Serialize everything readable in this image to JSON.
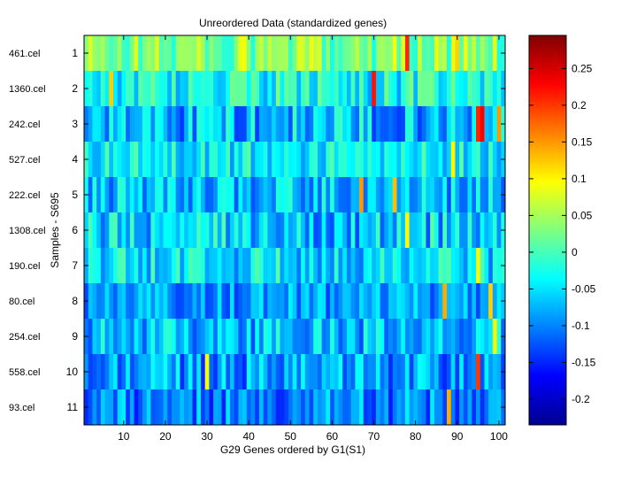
{
  "chart_data": {
    "type": "heatmap",
    "title": "Unreordered Data (standardized genes)",
    "xlabel": "G29 Genes ordered by G1(S1)",
    "ylabel": "Samples - S695",
    "x_ticks": [
      10,
      20,
      30,
      40,
      50,
      60,
      70,
      80,
      90,
      100
    ],
    "xlim": [
      0.5,
      101.5
    ],
    "n_columns": 101,
    "row_numbers": [
      1,
      2,
      3,
      4,
      5,
      6,
      7,
      8,
      9,
      10,
      11
    ],
    "row_labels": [
      "461.cel",
      "1360.cel",
      "242.cel",
      "527.cel",
      "222.cel",
      "1308.cel",
      "190.cel",
      "80.cel",
      "254.cel",
      "558.cel",
      "93.cel"
    ],
    "colorbar": {
      "colormap": "jet",
      "clim": [
        -0.235,
        0.295
      ],
      "ticks": [
        0.25,
        0.2,
        0.15,
        0.1,
        0.05,
        0,
        -0.05,
        -0.1,
        -0.15,
        -0.2
      ],
      "tick_labels": [
        "0.25",
        "0.2",
        "0.15",
        "0.1",
        "0.05",
        "0",
        "-0.05",
        "-0.1",
        "-0.15",
        "-0.2"
      ]
    },
    "row_profiles": [
      {
        "base": 0.03,
        "spread": 0.06
      },
      {
        "base": -0.03,
        "spread": 0.06
      },
      {
        "base": -0.07,
        "spread": 0.07
      },
      {
        "base": -0.04,
        "spread": 0.05
      },
      {
        "base": -0.07,
        "spread": 0.06
      },
      {
        "base": -0.06,
        "spread": 0.07
      },
      {
        "base": -0.05,
        "spread": 0.06
      },
      {
        "base": -0.09,
        "spread": 0.05
      },
      {
        "base": -0.07,
        "spread": 0.06
      },
      {
        "base": -0.09,
        "spread": 0.06
      },
      {
        "base": -0.1,
        "spread": 0.06
      }
    ],
    "hot_cells": [
      {
        "row": 1,
        "col": 78,
        "value": 0.21
      },
      {
        "row": 1,
        "col": 75,
        "value": 0.09
      },
      {
        "row": 1,
        "col": 90,
        "value": 0.12
      },
      {
        "row": 2,
        "col": 70,
        "value": 0.22
      },
      {
        "row": 2,
        "col": 7,
        "value": 0.12
      },
      {
        "row": 3,
        "col": 95,
        "value": 0.21
      },
      {
        "row": 3,
        "col": 96,
        "value": 0.23
      },
      {
        "row": 3,
        "col": 100,
        "value": 0.15
      },
      {
        "row": 4,
        "col": 89,
        "value": 0.1
      },
      {
        "row": 5,
        "col": 67,
        "value": 0.15
      },
      {
        "row": 5,
        "col": 75,
        "value": 0.13
      },
      {
        "row": 6,
        "col": 78,
        "value": 0.1
      },
      {
        "row": 7,
        "col": 95,
        "value": 0.09
      },
      {
        "row": 8,
        "col": 87,
        "value": 0.14
      },
      {
        "row": 8,
        "col": 98,
        "value": 0.12
      },
      {
        "row": 9,
        "col": 99,
        "value": 0.09
      },
      {
        "row": 10,
        "col": 95,
        "value": 0.2
      },
      {
        "row": 10,
        "col": 30,
        "value": 0.09
      },
      {
        "row": 11,
        "col": 88,
        "value": 0.14
      }
    ]
  }
}
